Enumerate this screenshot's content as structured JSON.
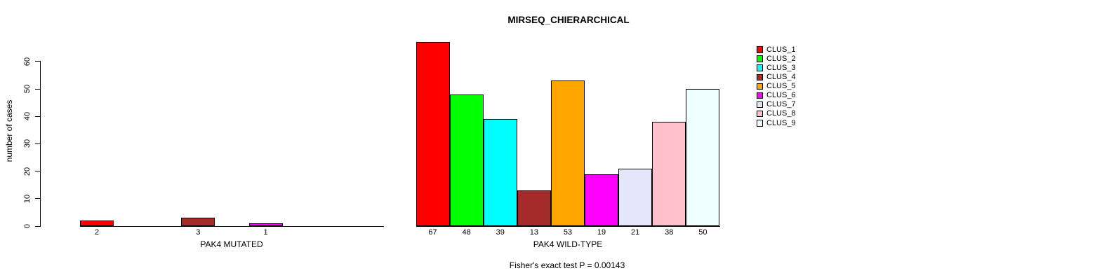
{
  "title": "MIRSEQ_CHIERARCHICAL",
  "footer": "Fisher's exact test P = 0.00143",
  "y_axis": {
    "label": "number of cases",
    "ticks": [
      "0",
      "10",
      "20",
      "30",
      "40",
      "50",
      "60"
    ]
  },
  "legend": {
    "items": [
      {
        "label": "CLUS_1",
        "color": "#FF0000"
      },
      {
        "label": "CLUS_2",
        "color": "#00FF00"
      },
      {
        "label": "CLUS_3",
        "color": "#00FFFF"
      },
      {
        "label": "CLUS_4",
        "color": "#A52A2A"
      },
      {
        "label": "CLUS_5",
        "color": "#FFA500"
      },
      {
        "label": "CLUS_6",
        "color": "#FF00FF"
      },
      {
        "label": "CLUS_7",
        "color": "#E6E6FA"
      },
      {
        "label": "CLUS_8",
        "color": "#FFC0CB"
      },
      {
        "label": "CLUS_9",
        "color": "#F0FFFF"
      }
    ]
  },
  "chart_data": [
    {
      "type": "bar",
      "title": "MIRSEQ_CHIERARCHICAL",
      "xlabel": "PAK4 MUTATED",
      "ylabel": "number of cases",
      "categories": [
        "CLUS_1",
        "CLUS_2",
        "CLUS_3",
        "CLUS_4",
        "CLUS_5",
        "CLUS_6",
        "CLUS_7",
        "CLUS_8",
        "CLUS_9"
      ],
      "values": [
        2,
        0,
        0,
        3,
        0,
        1,
        0,
        0,
        0
      ],
      "bar_labels": [
        "2",
        "",
        "",
        "3",
        "",
        "1",
        "",
        "",
        ""
      ],
      "colors": [
        "#FF0000",
        "#00FF00",
        "#00FFFF",
        "#A52A2A",
        "#FFA500",
        "#FF00FF",
        "#E6E6FA",
        "#FFC0CB",
        "#F0FFFF"
      ],
      "ylim": [
        0,
        60
      ],
      "y_ticks": [
        0,
        10,
        20,
        30,
        40,
        50,
        60
      ],
      "grid": false,
      "legend_position": "right"
    },
    {
      "type": "bar",
      "title": "MIRSEQ_CHIERARCHICAL",
      "xlabel": "PAK4 WILD-TYPE",
      "ylabel": "number of cases",
      "categories": [
        "CLUS_1",
        "CLUS_2",
        "CLUS_3",
        "CLUS_4",
        "CLUS_5",
        "CLUS_6",
        "CLUS_7",
        "CLUS_8",
        "CLUS_9"
      ],
      "values": [
        67,
        48,
        39,
        13,
        53,
        19,
        21,
        38,
        50
      ],
      "bar_labels": [
        "67",
        "48",
        "39",
        "13",
        "53",
        "19",
        "21",
        "38",
        "50"
      ],
      "colors": [
        "#FF0000",
        "#00FF00",
        "#00FFFF",
        "#A52A2A",
        "#FFA500",
        "#FF00FF",
        "#E6E6FA",
        "#FFC0CB",
        "#F0FFFF"
      ],
      "ylim": [
        0,
        60
      ],
      "y_ticks": [
        0,
        10,
        20,
        30,
        40,
        50,
        60
      ],
      "grid": false,
      "legend_position": "right"
    }
  ],
  "annotation": "Fisher's exact test P = 0.00143"
}
